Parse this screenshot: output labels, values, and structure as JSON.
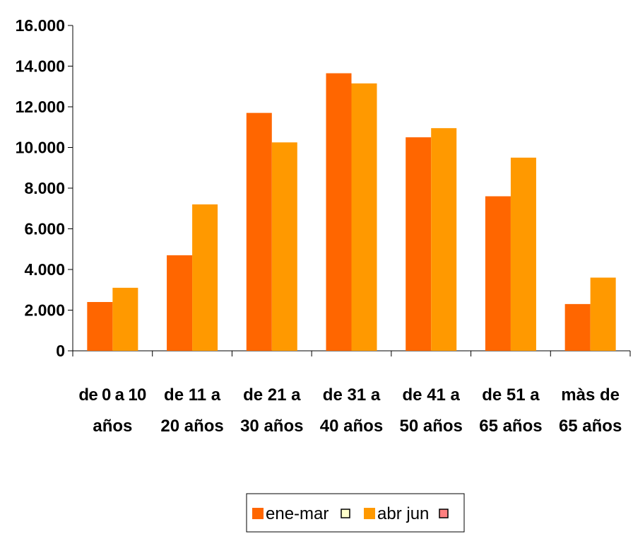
{
  "chart_data": {
    "type": "bar",
    "categories": [
      [
        "de 0 a 10",
        "años"
      ],
      [
        "de 11 a",
        "20 años"
      ],
      [
        "de 21 a",
        "30 años"
      ],
      [
        "de 31 a",
        "40 años"
      ],
      [
        "de 41 a",
        "50 años"
      ],
      [
        "de 51 a",
        "65 años"
      ],
      [
        "màs de",
        "65 años"
      ]
    ],
    "series": [
      {
        "name": "ene-mar",
        "color": "#FF6600",
        "values": [
          2400,
          4700,
          11700,
          13650,
          10500,
          7600,
          2300
        ]
      },
      {
        "name": "abr jun",
        "color": "#FF9900",
        "values": [
          3100,
          7200,
          10250,
          13150,
          10950,
          9500,
          3600
        ]
      }
    ],
    "ylim": [
      0,
      16000
    ],
    "yticks": [
      0,
      2000,
      4000,
      6000,
      8000,
      10000,
      12000,
      14000,
      16000
    ],
    "ytick_labels": [
      "0",
      "2.000",
      "4.000",
      "6.000",
      "8.000",
      "10.000",
      "12.000",
      "14.000",
      "16.000"
    ],
    "title": "",
    "xlabel": "",
    "ylabel": "",
    "grid": false,
    "legend_position": "bottom-center",
    "legend_marker_colors": [
      "#FFFFCC",
      "#FF8080"
    ]
  }
}
